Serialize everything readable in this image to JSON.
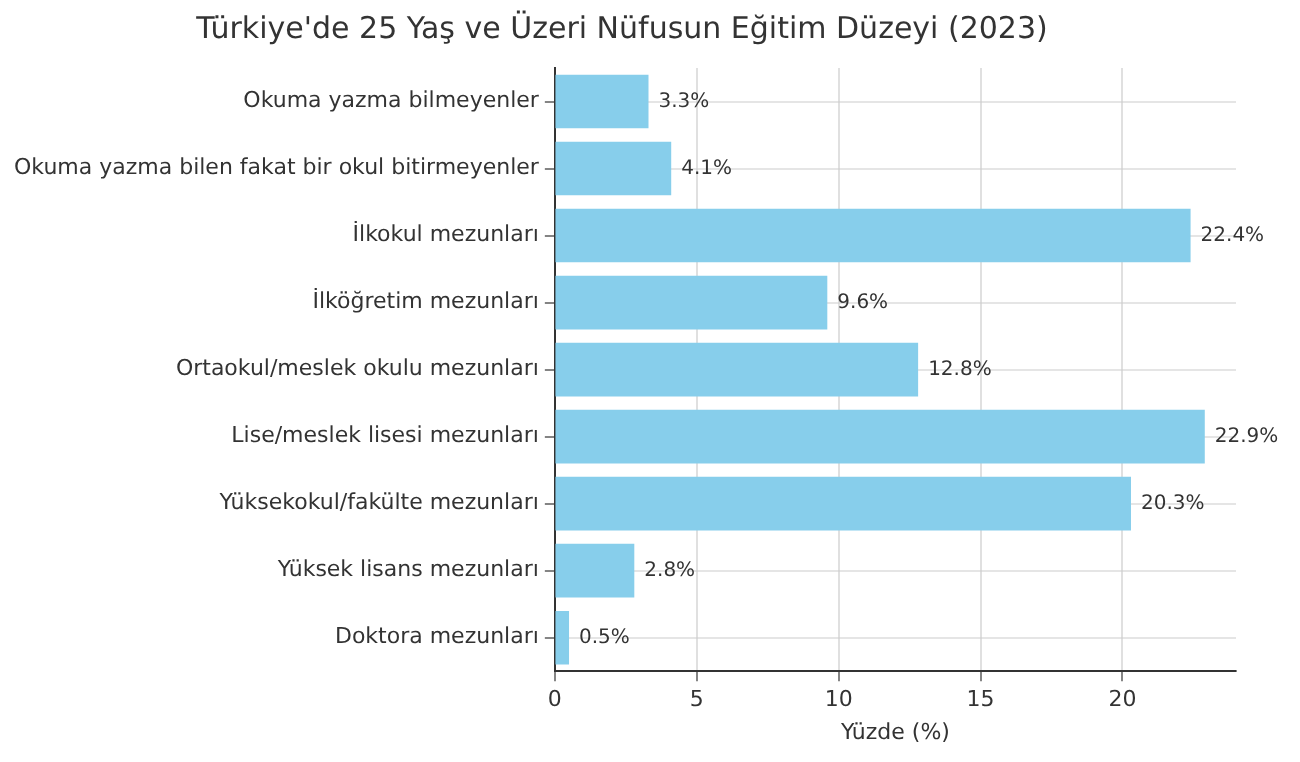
{
  "chart_data": {
    "type": "bar",
    "orientation": "horizontal",
    "title": "Türkiye'de 25 Yaş ve Üzeri Nüfusun Eğitim Düzeyi (2023)",
    "xlabel": "Yüzde (%)",
    "categories": [
      "Okuma yazma bilmeyenler",
      "Okuma yazma bilen fakat bir okul bitirmeyenler",
      "İlkokul mezunları",
      "İlköğretim mezunları",
      "Ortaokul/meslek okulu mezunları",
      "Lise/meslek lisesi mezunları",
      "Yüksekokul/fakülte mezunları",
      "Yüksek lisans mezunları",
      "Doktora mezunları"
    ],
    "values": [
      3.3,
      4.1,
      22.4,
      9.6,
      12.8,
      22.9,
      20.3,
      2.8,
      0.5
    ],
    "value_labels": [
      "3.3%",
      "4.1%",
      "22.4%",
      "9.6%",
      "12.8%",
      "22.9%",
      "20.3%",
      "2.8%",
      "0.5%"
    ],
    "color": "#87ceeb",
    "xlim": [
      0,
      24
    ],
    "xticks": [
      0,
      5,
      10,
      15,
      20
    ],
    "grid": true,
    "legend": false
  }
}
